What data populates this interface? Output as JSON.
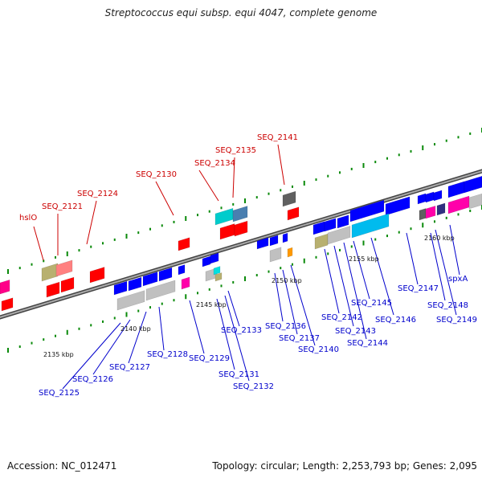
{
  "title": "Streptococcus equi subsp. equi 4047, complete genome",
  "footer": {
    "accession": "Accession: NC_012471",
    "summary": "Topology: circular; Length: 2,253,793 bp; Genes: 2,095"
  },
  "colors": {
    "backbone": "#808080",
    "dots": "#0a8a0a",
    "red_labels": "#cc0000",
    "blue_labels": "#0000cc",
    "red_genes": "#ff0000",
    "blue_genes": "#0000ff"
  },
  "kbp_labels": [
    "2135 kbp",
    "2140 kbp",
    "2145 kbp",
    "2150 kbp",
    "2155 kbp",
    "2160 kbp"
  ],
  "red_labels": [
    "hslO",
    "SEQ_2121",
    "SEQ_2124",
    "SEQ_2130",
    "SEQ_2134",
    "SEQ_2135",
    "SEQ_2141"
  ],
  "blue_labels": [
    "SEQ_2125",
    "SEQ_2126",
    "SEQ_2127",
    "SEQ_2128",
    "SEQ_2129",
    "SEQ_2131",
    "SEQ_2132",
    "SEQ_2133",
    "SEQ_2136",
    "SEQ_2137",
    "SEQ_2140",
    "SEQ_2142",
    "SEQ_2143",
    "SEQ_2144",
    "SEQ_2145",
    "SEQ_2146",
    "SEQ_2147",
    "SEQ_2148",
    "SEQ_2149",
    "spxA"
  ]
}
